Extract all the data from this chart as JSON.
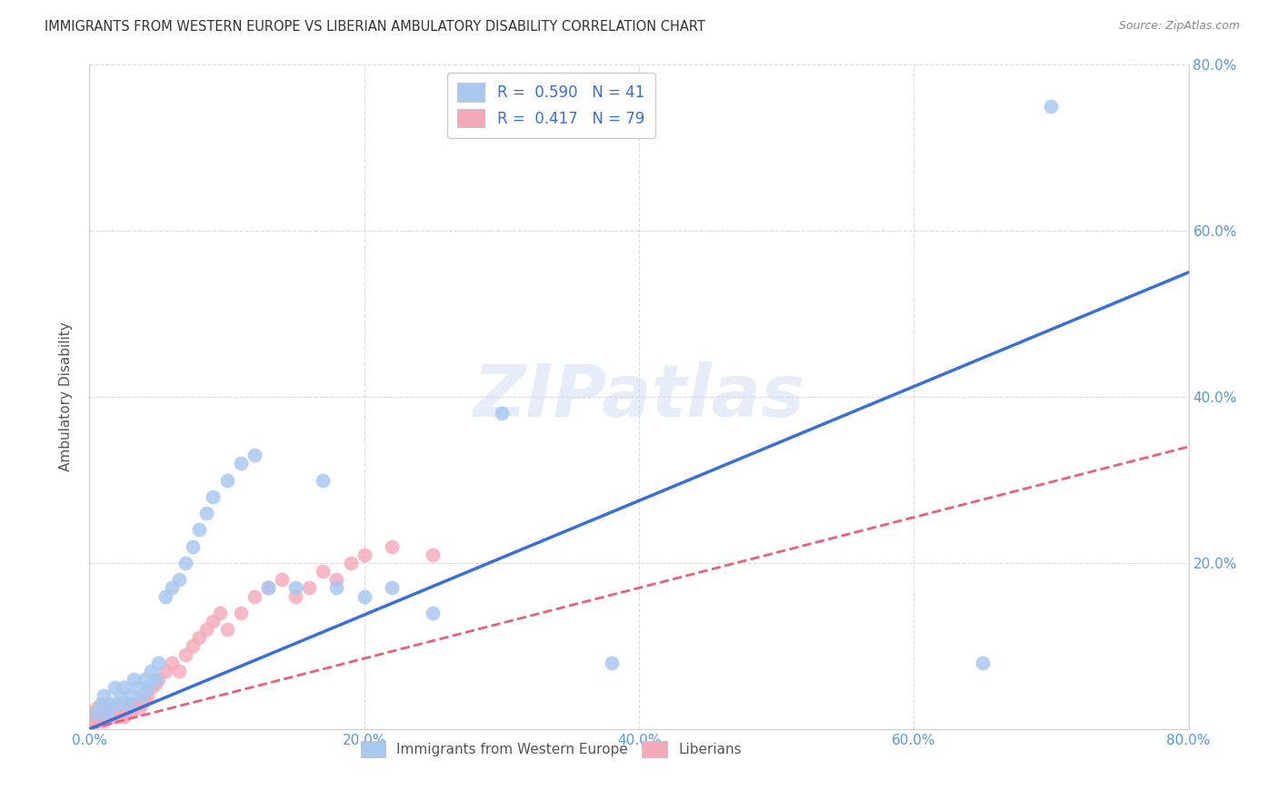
{
  "title": "IMMIGRANTS FROM WESTERN EUROPE VS LIBERIAN AMBULATORY DISABILITY CORRELATION CHART",
  "source": "Source: ZipAtlas.com",
  "ylabel": "Ambulatory Disability",
  "xlim": [
    0,
    0.8
  ],
  "ylim": [
    0,
    0.8
  ],
  "xtick_labels": [
    "0.0%",
    "20.0%",
    "40.0%",
    "60.0%",
    "80.0%"
  ],
  "xtick_vals": [
    0.0,
    0.2,
    0.4,
    0.6,
    0.8
  ],
  "ytick_labels_left": [],
  "ytick_vals_left": [],
  "ytick_labels_right": [
    "80.0%",
    "60.0%",
    "40.0%",
    "20.0%"
  ],
  "ytick_vals_right": [
    0.8,
    0.6,
    0.4,
    0.2
  ],
  "legend_entry1": "R =  0.590   N = 41",
  "legend_entry2": "R =  0.417   N = 79",
  "legend_color1": "#a8c8f0",
  "legend_color2": "#f4a8b8",
  "blue_scatter_color": "#a8c8f0",
  "pink_scatter_color": "#f4a8b8",
  "blue_line_color": "#3a6fd8",
  "pink_line_color": "#e8607a",
  "watermark_text": "ZIPatlas",
  "background_color": "#ffffff",
  "grid_color": "#d8d8d8",
  "blue_line_x0": 0.0,
  "blue_line_y0": 0.0,
  "blue_line_x1": 0.8,
  "blue_line_y1": 0.55,
  "pink_line_x0": 0.0,
  "pink_line_y0": 0.0,
  "pink_line_x1": 0.8,
  "pink_line_y1": 0.34,
  "blue_points_x": [
    0.005,
    0.008,
    0.01,
    0.012,
    0.015,
    0.018,
    0.02,
    0.022,
    0.025,
    0.028,
    0.03,
    0.032,
    0.035,
    0.038,
    0.04,
    0.042,
    0.045,
    0.048,
    0.05,
    0.055,
    0.06,
    0.065,
    0.07,
    0.075,
    0.08,
    0.085,
    0.09,
    0.1,
    0.11,
    0.12,
    0.13,
    0.15,
    0.17,
    0.18,
    0.2,
    0.22,
    0.25,
    0.3,
    0.38,
    0.65,
    0.7
  ],
  "blue_points_y": [
    0.02,
    0.03,
    0.04,
    0.02,
    0.03,
    0.05,
    0.03,
    0.04,
    0.05,
    0.03,
    0.04,
    0.06,
    0.05,
    0.04,
    0.06,
    0.05,
    0.07,
    0.06,
    0.08,
    0.16,
    0.17,
    0.18,
    0.2,
    0.22,
    0.24,
    0.26,
    0.28,
    0.3,
    0.32,
    0.33,
    0.17,
    0.17,
    0.3,
    0.17,
    0.16,
    0.17,
    0.14,
    0.38,
    0.08,
    0.08,
    0.75
  ],
  "pink_points_x": [
    0.001,
    0.002,
    0.003,
    0.003,
    0.004,
    0.004,
    0.005,
    0.005,
    0.005,
    0.006,
    0.006,
    0.007,
    0.007,
    0.008,
    0.008,
    0.009,
    0.009,
    0.01,
    0.01,
    0.01,
    0.011,
    0.011,
    0.012,
    0.012,
    0.013,
    0.013,
    0.014,
    0.015,
    0.015,
    0.016,
    0.016,
    0.017,
    0.017,
    0.018,
    0.018,
    0.019,
    0.02,
    0.02,
    0.021,
    0.022,
    0.023,
    0.024,
    0.025,
    0.026,
    0.027,
    0.028,
    0.029,
    0.03,
    0.032,
    0.034,
    0.036,
    0.038,
    0.04,
    0.042,
    0.045,
    0.048,
    0.05,
    0.055,
    0.06,
    0.065,
    0.07,
    0.075,
    0.08,
    0.085,
    0.09,
    0.095,
    0.1,
    0.11,
    0.12,
    0.13,
    0.14,
    0.15,
    0.16,
    0.17,
    0.18,
    0.19,
    0.2,
    0.22,
    0.25
  ],
  "pink_points_y": [
    0.01,
    0.01,
    0.02,
    0.01,
    0.015,
    0.02,
    0.01,
    0.02,
    0.025,
    0.01,
    0.015,
    0.02,
    0.015,
    0.01,
    0.02,
    0.015,
    0.025,
    0.01,
    0.02,
    0.025,
    0.015,
    0.02,
    0.015,
    0.025,
    0.02,
    0.015,
    0.02,
    0.015,
    0.02,
    0.025,
    0.015,
    0.02,
    0.025,
    0.015,
    0.02,
    0.025,
    0.015,
    0.02,
    0.025,
    0.02,
    0.025,
    0.02,
    0.015,
    0.02,
    0.025,
    0.02,
    0.025,
    0.03,
    0.025,
    0.03,
    0.025,
    0.03,
    0.035,
    0.04,
    0.05,
    0.055,
    0.06,
    0.07,
    0.08,
    0.07,
    0.09,
    0.1,
    0.11,
    0.12,
    0.13,
    0.14,
    0.12,
    0.14,
    0.16,
    0.17,
    0.18,
    0.16,
    0.17,
    0.19,
    0.18,
    0.2,
    0.21,
    0.22,
    0.21
  ]
}
